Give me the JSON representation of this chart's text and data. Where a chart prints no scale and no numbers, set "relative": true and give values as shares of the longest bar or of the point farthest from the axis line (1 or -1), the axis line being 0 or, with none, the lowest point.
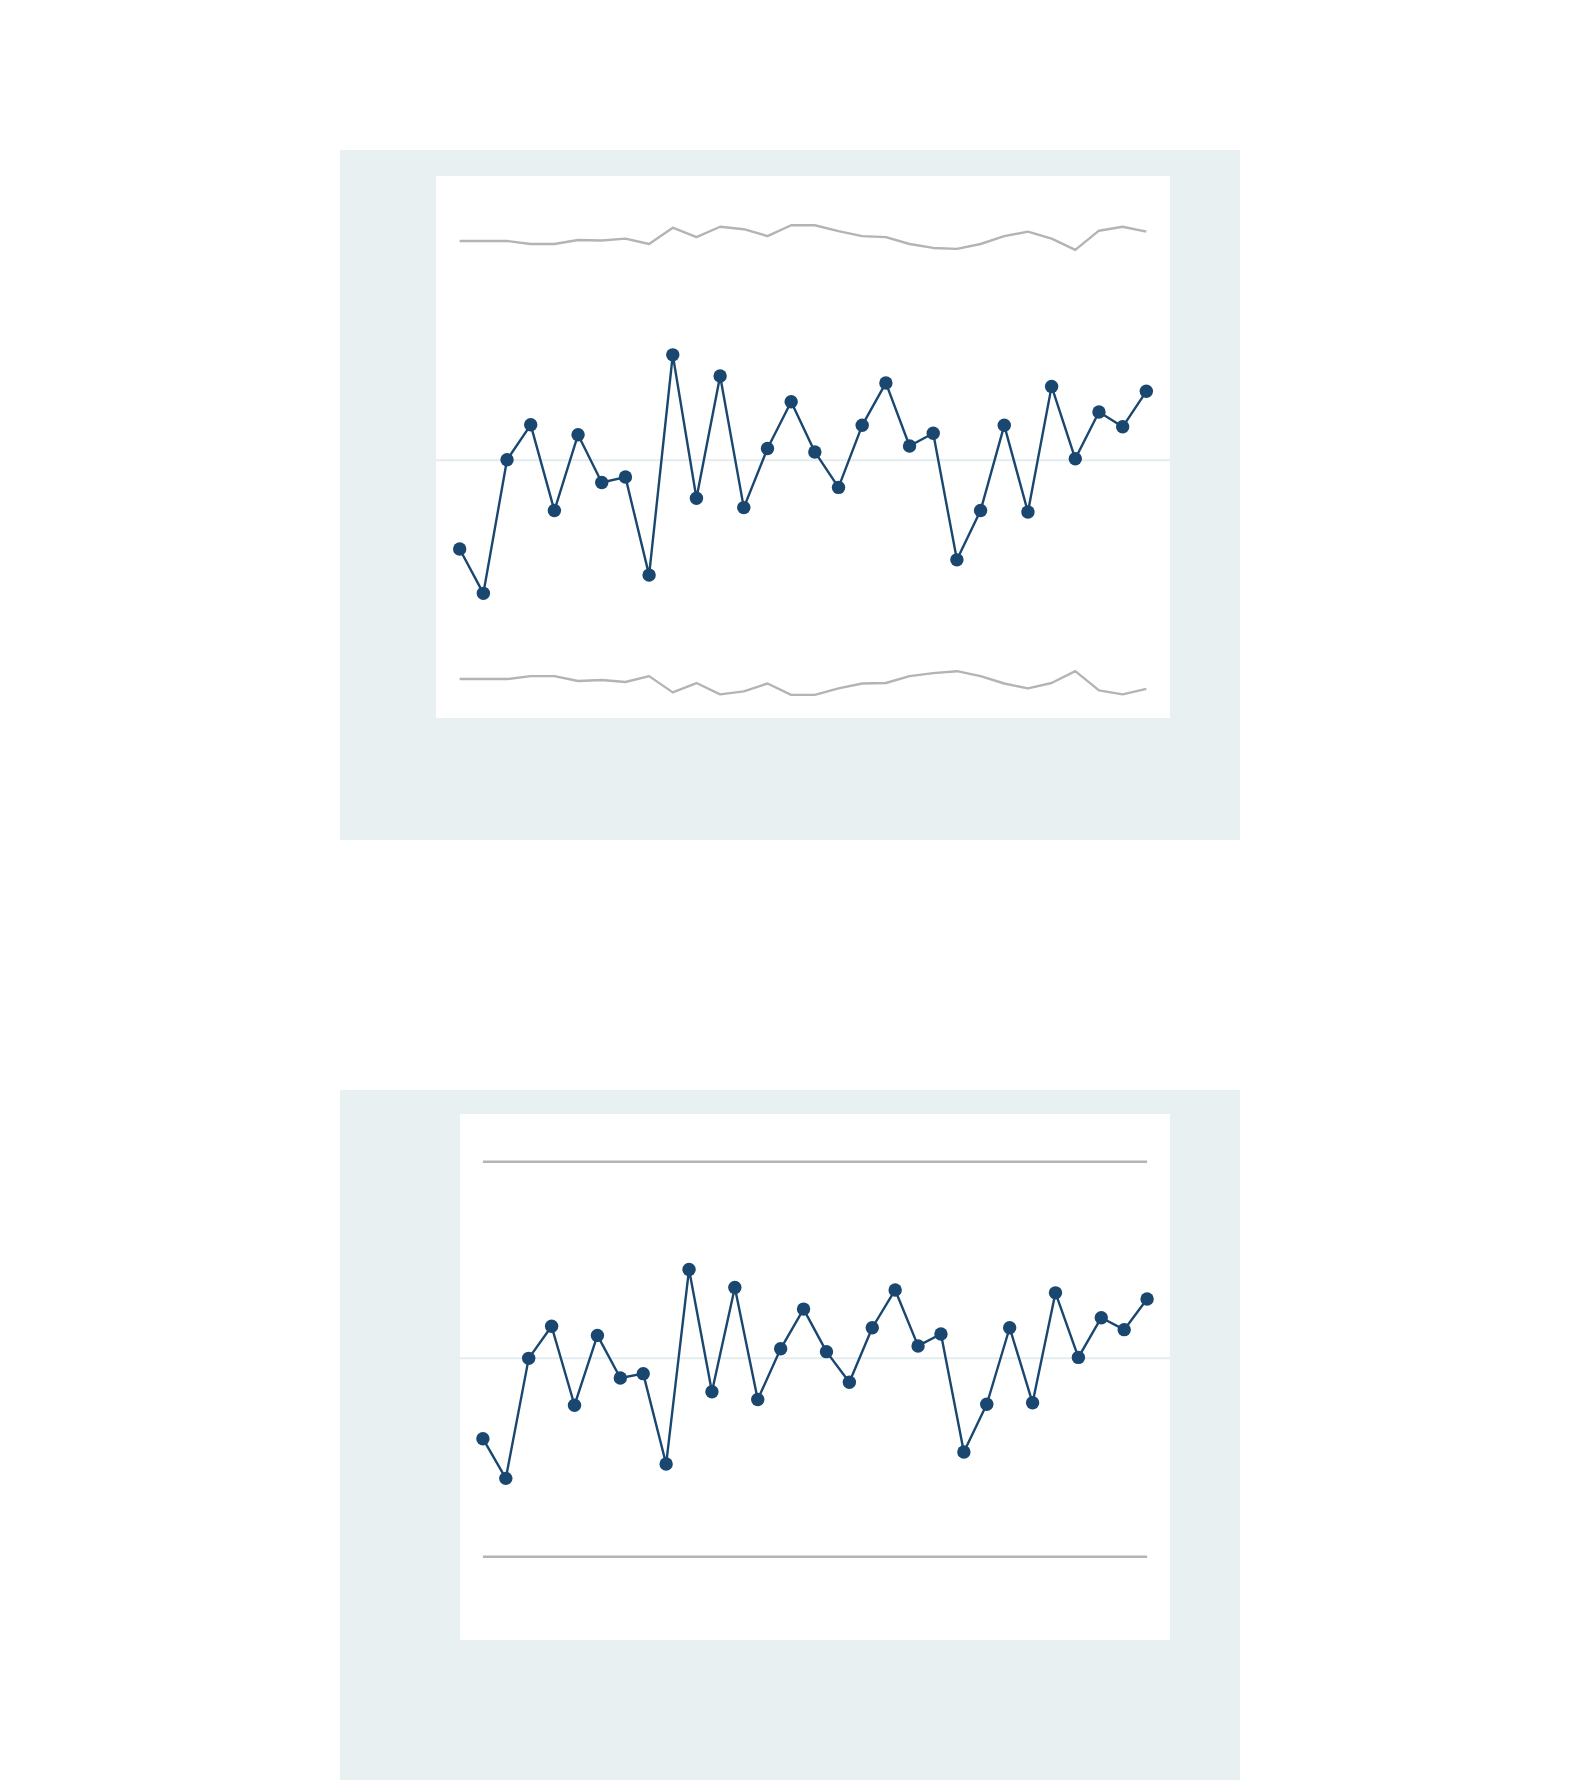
{
  "chart_data": [
    {
      "type": "line",
      "relative": true,
      "marker": "circle",
      "categories": [
        null,
        null,
        null,
        null,
        null,
        null,
        null,
        null,
        null,
        null,
        null,
        null,
        null,
        null,
        null,
        null,
        null,
        null,
        null,
        null,
        null,
        null,
        null,
        null,
        null,
        null,
        null,
        null,
        null,
        null
      ],
      "series": [
        {
          "color": "#1a476f",
          "values": [
            0.343,
            0.253,
            0.524,
            0.595,
            0.421,
            0.575,
            0.478,
            0.489,
            0.29,
            0.737,
            0.446,
            0.694,
            0.427,
            0.547,
            0.642,
            0.54,
            0.468,
            0.594,
            0.68,
            0.552,
            0.578,
            0.321,
            0.421,
            0.594,
            0.418,
            0.673,
            0.526,
            0.621,
            0.591,
            0.663
          ]
        },
        {
          "color": "#b4b4b4",
          "marker": "none",
          "values": [
            0.968,
            0.968,
            0.968,
            0.962,
            0.962,
            0.97,
            0.969,
            0.973,
            0.962,
            0.995,
            0.976,
            0.997,
            0.992,
            0.978,
            1,
            1,
            0.988,
            0.978,
            0.976,
            0.962,
            0.954,
            0.952,
            0.962,
            0.978,
            0.987,
            0.973,
            0.95,
            0.989,
            0.997,
            0.987
          ]
        },
        {
          "color": "#b4b4b4",
          "marker": "none",
          "values": [
            0.079,
            0.079,
            0.079,
            0.085,
            0.085,
            0.075,
            0.077,
            0.073,
            0.085,
            0.052,
            0.071,
            0.048,
            0.054,
            0.07,
            0.047,
            0.047,
            0.06,
            0.07,
            0.071,
            0.085,
            0.091,
            0.095,
            0.085,
            0.07,
            0.06,
            0.071,
            0.095,
            0.056,
            0.048,
            0.059
          ]
        }
      ],
      "ref_lines": [
        {
          "axis": "y",
          "value": 0.523,
          "color": "#e3ecef"
        }
      ]
    },
    {
      "type": "line",
      "relative": true,
      "marker": "circle",
      "categories": [
        null,
        null,
        null,
        null,
        null,
        null,
        null,
        null,
        null,
        null,
        null,
        null,
        null,
        null,
        null,
        null,
        null,
        null,
        null,
        null,
        null,
        null,
        null,
        null,
        null,
        null,
        null,
        null,
        null,
        null
      ],
      "series": [
        {
          "color": "#1a476f",
          "values": [
            0.421,
            0.338,
            0.589,
            0.656,
            0.491,
            0.637,
            0.548,
            0.557,
            0.368,
            0.775,
            0.519,
            0.737,
            0.503,
            0.609,
            0.692,
            0.603,
            0.539,
            0.653,
            0.732,
            0.615,
            0.64,
            0.393,
            0.493,
            0.653,
            0.496,
            0.726,
            0.591,
            0.674,
            0.649,
            0.713
          ]
        },
        {
          "color": "#b4b4b4",
          "marker": "none",
          "values": [
            1,
            1,
            1,
            1,
            1,
            1,
            1,
            1,
            1,
            1,
            1,
            1,
            1,
            1,
            1,
            1,
            1,
            1,
            1,
            1,
            1,
            1,
            1,
            1,
            1,
            1,
            1,
            1,
            1,
            1
          ]
        },
        {
          "color": "#b4b4b4",
          "marker": "none",
          "values": [
            0.174,
            0.174,
            0.174,
            0.174,
            0.174,
            0.174,
            0.174,
            0.174,
            0.174,
            0.174,
            0.174,
            0.174,
            0.174,
            0.174,
            0.174,
            0.174,
            0.174,
            0.174,
            0.174,
            0.174,
            0.174,
            0.174,
            0.174,
            0.174,
            0.174,
            0.174,
            0.174,
            0.174,
            0.174,
            0.174
          ]
        }
      ],
      "ref_lines": [
        {
          "axis": "y",
          "value": 0.589,
          "color": "#e3ecef"
        }
      ]
    }
  ]
}
